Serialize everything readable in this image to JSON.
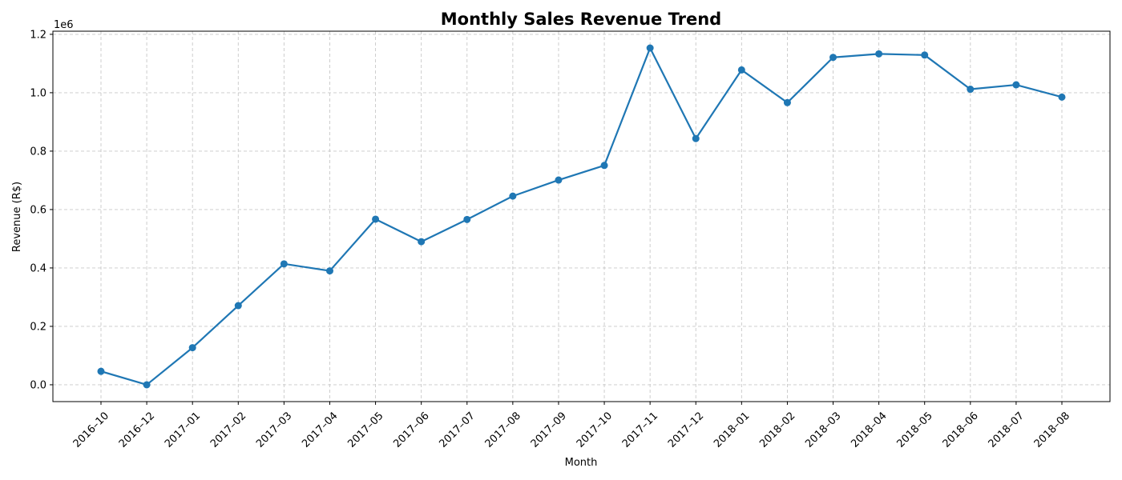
{
  "chart_data": {
    "type": "line",
    "title": "Monthly Sales Revenue Trend",
    "xlabel": "Month",
    "ylabel": "Revenue (R$)",
    "y_offset_label": "1e6",
    "categories": [
      "2016–10",
      "2016–12",
      "2017–01",
      "2017–02",
      "2017–03",
      "2017–04",
      "2017–05",
      "2017–06",
      "2017–07",
      "2017–08",
      "2017–09",
      "2017–10",
      "2017–11",
      "2017–12",
      "2018–01",
      "2018–02",
      "2018–03",
      "2018–04",
      "2018–05",
      "2018–06",
      "2018–07",
      "2018–08"
    ],
    "series": [
      {
        "values": [
          46000,
          10,
          127000,
          271000,
          414000,
          390000,
          567000,
          490000,
          566000,
          646000,
          701000,
          751000,
          1153000,
          843000,
          1078000,
          966000,
          1121000,
          1133000,
          1129000,
          1012000,
          1027000,
          985000
        ],
        "color": "#1f77b4"
      }
    ],
    "y_ticks": [
      0.0,
      0.2,
      0.4,
      0.6,
      0.8,
      1.0,
      1.2
    ],
    "y_tick_labels": [
      "0.0",
      "0.2",
      "0.4",
      "0.6",
      "0.8",
      "1.0",
      "1.2"
    ],
    "y_tick_scale": 1000000,
    "ylim": [
      -57650,
      1210650
    ],
    "grid": true,
    "marker": "circle"
  }
}
